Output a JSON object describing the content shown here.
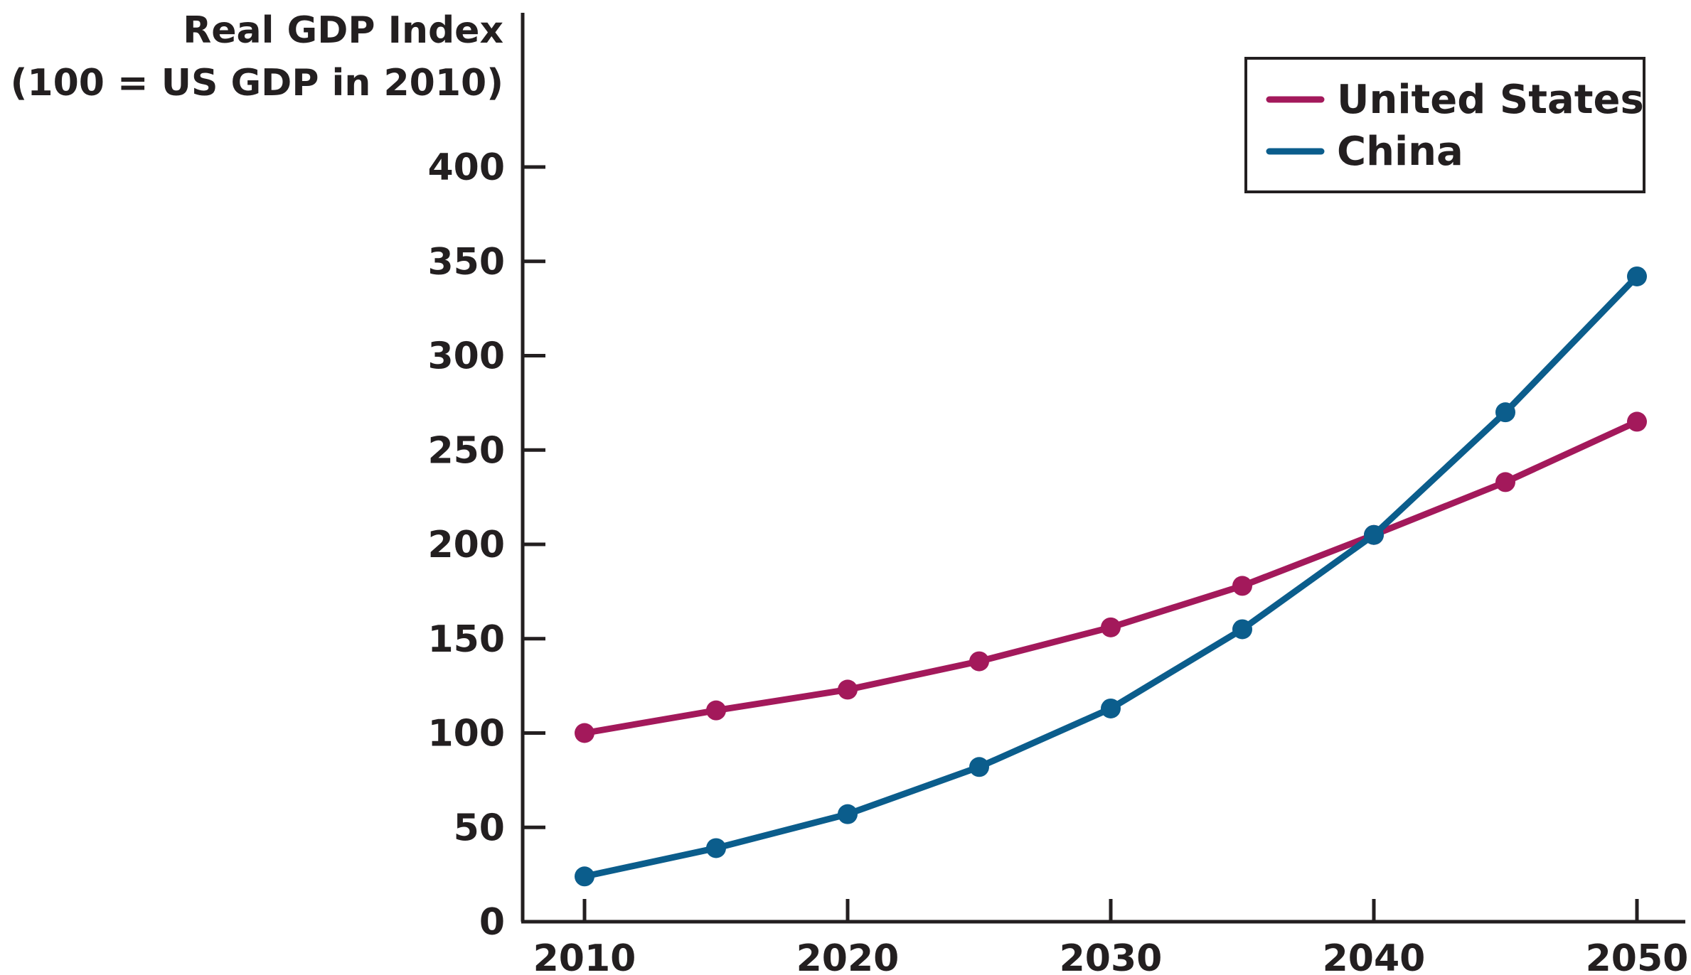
{
  "chart_data": {
    "type": "line",
    "ylabel_line1": "Real GDP Index",
    "ylabel_line2": "(100 = US GDP in 2010)",
    "xlabel": "",
    "x": [
      2010,
      2015,
      2020,
      2025,
      2030,
      2035,
      2040,
      2045,
      2050
    ],
    "x_ticks": [
      2010,
      2020,
      2030,
      2040,
      2050
    ],
    "x_tick_labels": [
      "2010",
      "2020",
      "2030",
      "2040",
      "2050"
    ],
    "y_ticks": [
      0,
      50,
      100,
      150,
      200,
      250,
      300,
      350,
      400
    ],
    "y_tick_labels": [
      "0",
      "50",
      "100",
      "150",
      "200",
      "250",
      "300",
      "350",
      "400"
    ],
    "xlim": [
      2010,
      2050
    ],
    "ylim": [
      0,
      400
    ],
    "grid": false,
    "legend_position": "top-right",
    "series": [
      {
        "name": "United States",
        "color": "#a3195b",
        "values": [
          100,
          112,
          123,
          138,
          156,
          178,
          205,
          233,
          265
        ]
      },
      {
        "name": "China",
        "color": "#0b5d8c",
        "values": [
          24,
          39,
          57,
          82,
          113,
          155,
          205,
          270,
          342
        ]
      }
    ]
  }
}
